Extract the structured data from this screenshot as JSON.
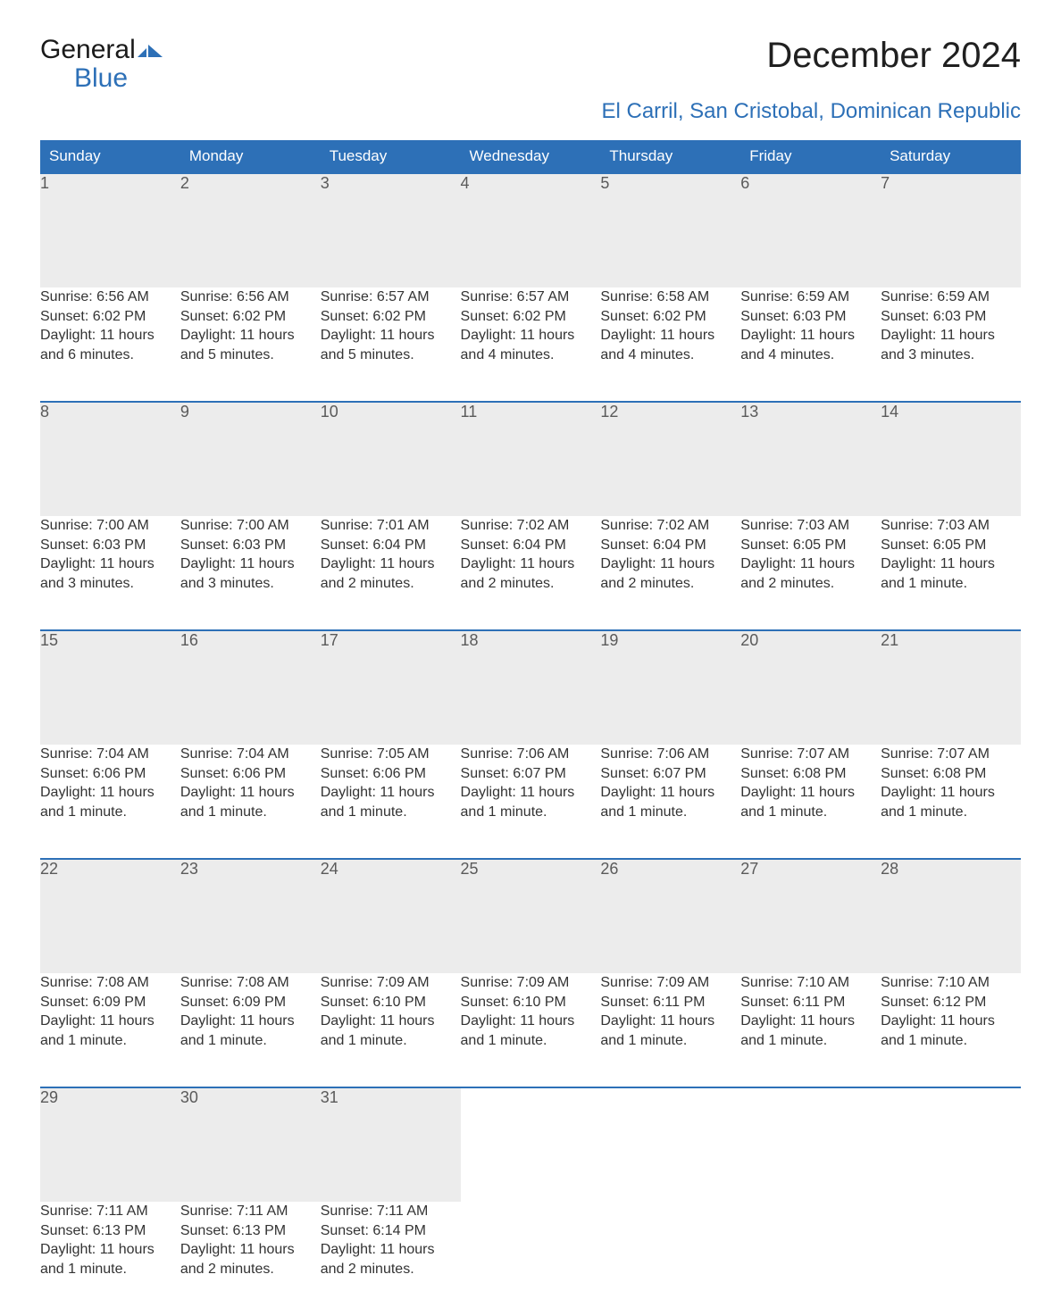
{
  "logo": {
    "word1": "General",
    "word2": "Blue"
  },
  "title": "December 2024",
  "subtitle": "El Carril, San Cristobal, Dominican Republic",
  "colors": {
    "header_bg": "#2d70b7",
    "header_text": "#ffffff",
    "daynum_bg": "#ececec",
    "daynum_text": "#5a5a5a",
    "body_text": "#333333",
    "accent": "#2d70b7",
    "page_bg": "#ffffff"
  },
  "typography": {
    "title_fontsize": 40,
    "subtitle_fontsize": 24,
    "header_fontsize": 17,
    "daynum_fontsize": 18,
    "body_fontsize": 16,
    "font_family": "Arial"
  },
  "layout": {
    "columns": 7,
    "rows": 5,
    "cell_border_top": "2px solid #2d70b7"
  },
  "weekdays": [
    "Sunday",
    "Monday",
    "Tuesday",
    "Wednesday",
    "Thursday",
    "Friday",
    "Saturday"
  ],
  "weeks": [
    [
      {
        "n": "1",
        "sr": "Sunrise: 6:56 AM",
        "ss": "Sunset: 6:02 PM",
        "d1": "Daylight: 11 hours",
        "d2": "and 6 minutes."
      },
      {
        "n": "2",
        "sr": "Sunrise: 6:56 AM",
        "ss": "Sunset: 6:02 PM",
        "d1": "Daylight: 11 hours",
        "d2": "and 5 minutes."
      },
      {
        "n": "3",
        "sr": "Sunrise: 6:57 AM",
        "ss": "Sunset: 6:02 PM",
        "d1": "Daylight: 11 hours",
        "d2": "and 5 minutes."
      },
      {
        "n": "4",
        "sr": "Sunrise: 6:57 AM",
        "ss": "Sunset: 6:02 PM",
        "d1": "Daylight: 11 hours",
        "d2": "and 4 minutes."
      },
      {
        "n": "5",
        "sr": "Sunrise: 6:58 AM",
        "ss": "Sunset: 6:02 PM",
        "d1": "Daylight: 11 hours",
        "d2": "and 4 minutes."
      },
      {
        "n": "6",
        "sr": "Sunrise: 6:59 AM",
        "ss": "Sunset: 6:03 PM",
        "d1": "Daylight: 11 hours",
        "d2": "and 4 minutes."
      },
      {
        "n": "7",
        "sr": "Sunrise: 6:59 AM",
        "ss": "Sunset: 6:03 PM",
        "d1": "Daylight: 11 hours",
        "d2": "and 3 minutes."
      }
    ],
    [
      {
        "n": "8",
        "sr": "Sunrise: 7:00 AM",
        "ss": "Sunset: 6:03 PM",
        "d1": "Daylight: 11 hours",
        "d2": "and 3 minutes."
      },
      {
        "n": "9",
        "sr": "Sunrise: 7:00 AM",
        "ss": "Sunset: 6:03 PM",
        "d1": "Daylight: 11 hours",
        "d2": "and 3 minutes."
      },
      {
        "n": "10",
        "sr": "Sunrise: 7:01 AM",
        "ss": "Sunset: 6:04 PM",
        "d1": "Daylight: 11 hours",
        "d2": "and 2 minutes."
      },
      {
        "n": "11",
        "sr": "Sunrise: 7:02 AM",
        "ss": "Sunset: 6:04 PM",
        "d1": "Daylight: 11 hours",
        "d2": "and 2 minutes."
      },
      {
        "n": "12",
        "sr": "Sunrise: 7:02 AM",
        "ss": "Sunset: 6:04 PM",
        "d1": "Daylight: 11 hours",
        "d2": "and 2 minutes."
      },
      {
        "n": "13",
        "sr": "Sunrise: 7:03 AM",
        "ss": "Sunset: 6:05 PM",
        "d1": "Daylight: 11 hours",
        "d2": "and 2 minutes."
      },
      {
        "n": "14",
        "sr": "Sunrise: 7:03 AM",
        "ss": "Sunset: 6:05 PM",
        "d1": "Daylight: 11 hours",
        "d2": "and 1 minute."
      }
    ],
    [
      {
        "n": "15",
        "sr": "Sunrise: 7:04 AM",
        "ss": "Sunset: 6:06 PM",
        "d1": "Daylight: 11 hours",
        "d2": "and 1 minute."
      },
      {
        "n": "16",
        "sr": "Sunrise: 7:04 AM",
        "ss": "Sunset: 6:06 PM",
        "d1": "Daylight: 11 hours",
        "d2": "and 1 minute."
      },
      {
        "n": "17",
        "sr": "Sunrise: 7:05 AM",
        "ss": "Sunset: 6:06 PM",
        "d1": "Daylight: 11 hours",
        "d2": "and 1 minute."
      },
      {
        "n": "18",
        "sr": "Sunrise: 7:06 AM",
        "ss": "Sunset: 6:07 PM",
        "d1": "Daylight: 11 hours",
        "d2": "and 1 minute."
      },
      {
        "n": "19",
        "sr": "Sunrise: 7:06 AM",
        "ss": "Sunset: 6:07 PM",
        "d1": "Daylight: 11 hours",
        "d2": "and 1 minute."
      },
      {
        "n": "20",
        "sr": "Sunrise: 7:07 AM",
        "ss": "Sunset: 6:08 PM",
        "d1": "Daylight: 11 hours",
        "d2": "and 1 minute."
      },
      {
        "n": "21",
        "sr": "Sunrise: 7:07 AM",
        "ss": "Sunset: 6:08 PM",
        "d1": "Daylight: 11 hours",
        "d2": "and 1 minute."
      }
    ],
    [
      {
        "n": "22",
        "sr": "Sunrise: 7:08 AM",
        "ss": "Sunset: 6:09 PM",
        "d1": "Daylight: 11 hours",
        "d2": "and 1 minute."
      },
      {
        "n": "23",
        "sr": "Sunrise: 7:08 AM",
        "ss": "Sunset: 6:09 PM",
        "d1": "Daylight: 11 hours",
        "d2": "and 1 minute."
      },
      {
        "n": "24",
        "sr": "Sunrise: 7:09 AM",
        "ss": "Sunset: 6:10 PM",
        "d1": "Daylight: 11 hours",
        "d2": "and 1 minute."
      },
      {
        "n": "25",
        "sr": "Sunrise: 7:09 AM",
        "ss": "Sunset: 6:10 PM",
        "d1": "Daylight: 11 hours",
        "d2": "and 1 minute."
      },
      {
        "n": "26",
        "sr": "Sunrise: 7:09 AM",
        "ss": "Sunset: 6:11 PM",
        "d1": "Daylight: 11 hours",
        "d2": "and 1 minute."
      },
      {
        "n": "27",
        "sr": "Sunrise: 7:10 AM",
        "ss": "Sunset: 6:11 PM",
        "d1": "Daylight: 11 hours",
        "d2": "and 1 minute."
      },
      {
        "n": "28",
        "sr": "Sunrise: 7:10 AM",
        "ss": "Sunset: 6:12 PM",
        "d1": "Daylight: 11 hours",
        "d2": "and 1 minute."
      }
    ],
    [
      {
        "n": "29",
        "sr": "Sunrise: 7:11 AM",
        "ss": "Sunset: 6:13 PM",
        "d1": "Daylight: 11 hours",
        "d2": "and 1 minute."
      },
      {
        "n": "30",
        "sr": "Sunrise: 7:11 AM",
        "ss": "Sunset: 6:13 PM",
        "d1": "Daylight: 11 hours",
        "d2": "and 2 minutes."
      },
      {
        "n": "31",
        "sr": "Sunrise: 7:11 AM",
        "ss": "Sunset: 6:14 PM",
        "d1": "Daylight: 11 hours",
        "d2": "and 2 minutes."
      },
      null,
      null,
      null,
      null
    ]
  ]
}
